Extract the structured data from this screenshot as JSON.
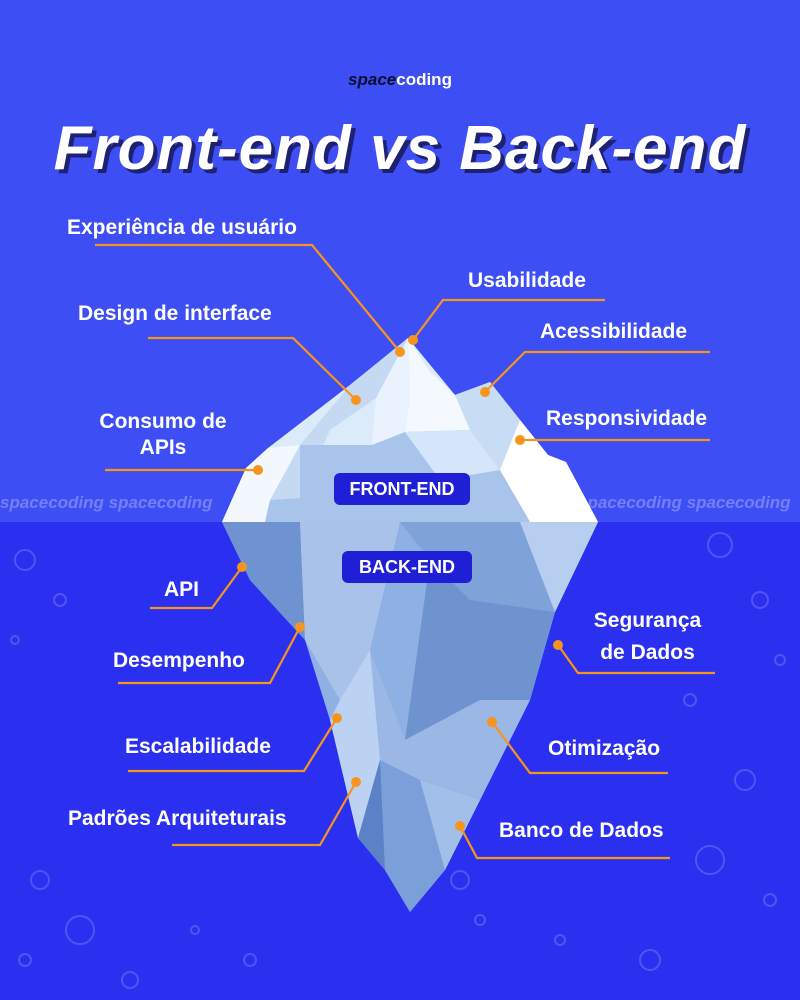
{
  "brand": {
    "part1": "space",
    "part2": "coding"
  },
  "title": "Front-end vs Back-end",
  "watermark": {
    "left": "spacecoding spacecoding",
    "right": "spacecoding spacecoding"
  },
  "front_end": {
    "badge": "FRONT-END",
    "labels": [
      "Experiência de usuário",
      "Usabilidade",
      "Design de interface",
      "Acessibilidade",
      "Consumo de APIs",
      "Responsividade"
    ]
  },
  "back_end": {
    "badge": "BACK-END",
    "labels": [
      "API",
      "Segurança de Dados",
      "Desempenho",
      "Escalabilidade",
      "Otimização",
      "Padrões Arquiteturais",
      "Banco de Dados"
    ]
  },
  "colors": {
    "sky": "#3d4ef4",
    "sea": "#2b2ff0",
    "leader": "#f7941d",
    "badge": "#1f1fd6"
  }
}
